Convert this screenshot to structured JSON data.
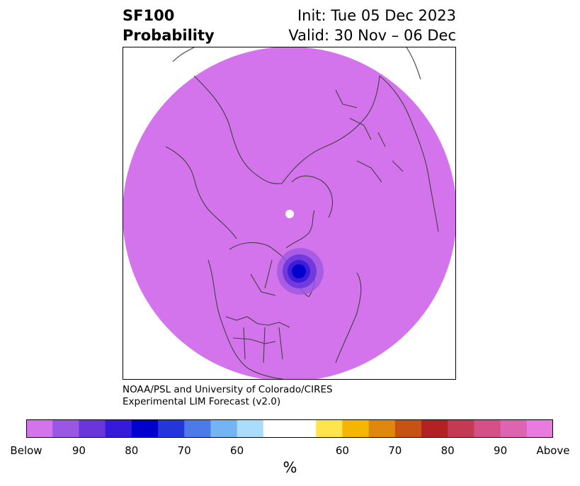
{
  "title": {
    "left_line1": "SF100",
    "left_line2": "Probability",
    "right_line1": "Init: Tue 05 Dec 2023",
    "right_line2": "Valid: 30 Nov – 06 Dec"
  },
  "credit": {
    "line1": "NOAA/PSL and University of Colorado/CIRES",
    "line2": "Experimental LIM Forecast (v2.0)"
  },
  "map": {
    "background_color": "#d474ec",
    "coastline_color": "#404040",
    "anomaly_colors": [
      "#9b56e3",
      "#6a36dc",
      "#3719d9",
      "#0000cc"
    ]
  },
  "colorbar": {
    "unit": "%",
    "colors": [
      "#d474ec",
      "#9b56e3",
      "#6a36dc",
      "#3719d9",
      "#0000cc",
      "#2236da",
      "#4c7ae8",
      "#74b4f4",
      "#aadcfc",
      "#ffffff",
      "#ffe44c",
      "#f4b600",
      "#e0880e",
      "#c65214",
      "#b22222",
      "#c43a52",
      "#d45086",
      "#dc64b0",
      "#e87ae0"
    ],
    "tick_labels": [
      "Below",
      "90",
      "80",
      "70",
      "60",
      "60",
      "70",
      "80",
      "90",
      "Above"
    ]
  }
}
